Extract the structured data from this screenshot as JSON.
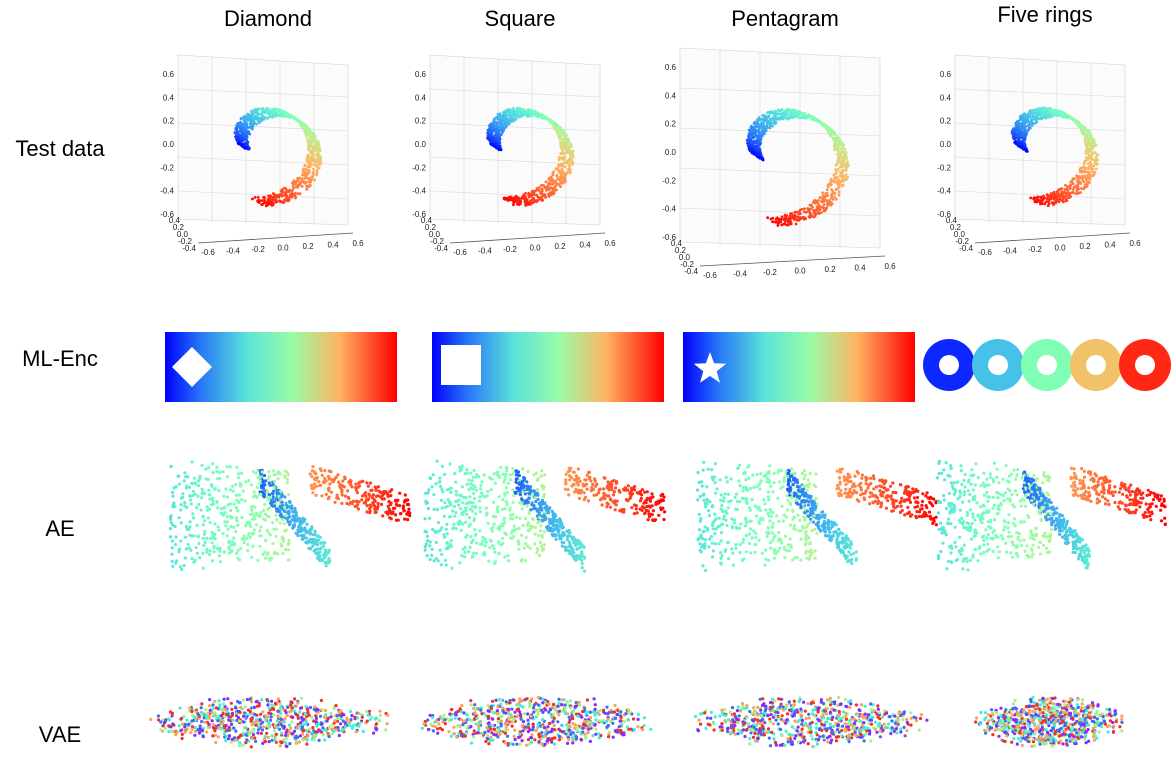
{
  "columns": [
    "Diamond",
    "Square",
    "Pentagram",
    "Five rings"
  ],
  "rows": [
    "Test data",
    "ML-Enc",
    "AE",
    "VAE"
  ],
  "axes3d": {
    "vertical_ticks": [
      "0.6",
      "0.4",
      "0.2",
      "0.0",
      "-0.2",
      "-0.4",
      "-0.6"
    ],
    "bottom_ticks": [
      "-0.6",
      "-0.4",
      "-0.2",
      "0.0",
      "0.2",
      "0.4",
      "0.6"
    ],
    "depth_ticks": [
      "0.4",
      "0.2",
      "0.0",
      "-0.2",
      "-0.4"
    ]
  },
  "colors": {
    "colormap": "rainbow",
    "purple": "#7f2fff",
    "blue": "#3c6ef4",
    "cyan": "#3ef0d8",
    "green": "#a6f08a",
    "orange": "#fba15b",
    "red": "#f5301f"
  },
  "embeddings": {
    "ml_enc_holes": [
      "diamond",
      "square",
      "pentagram",
      "five-rings"
    ]
  }
}
